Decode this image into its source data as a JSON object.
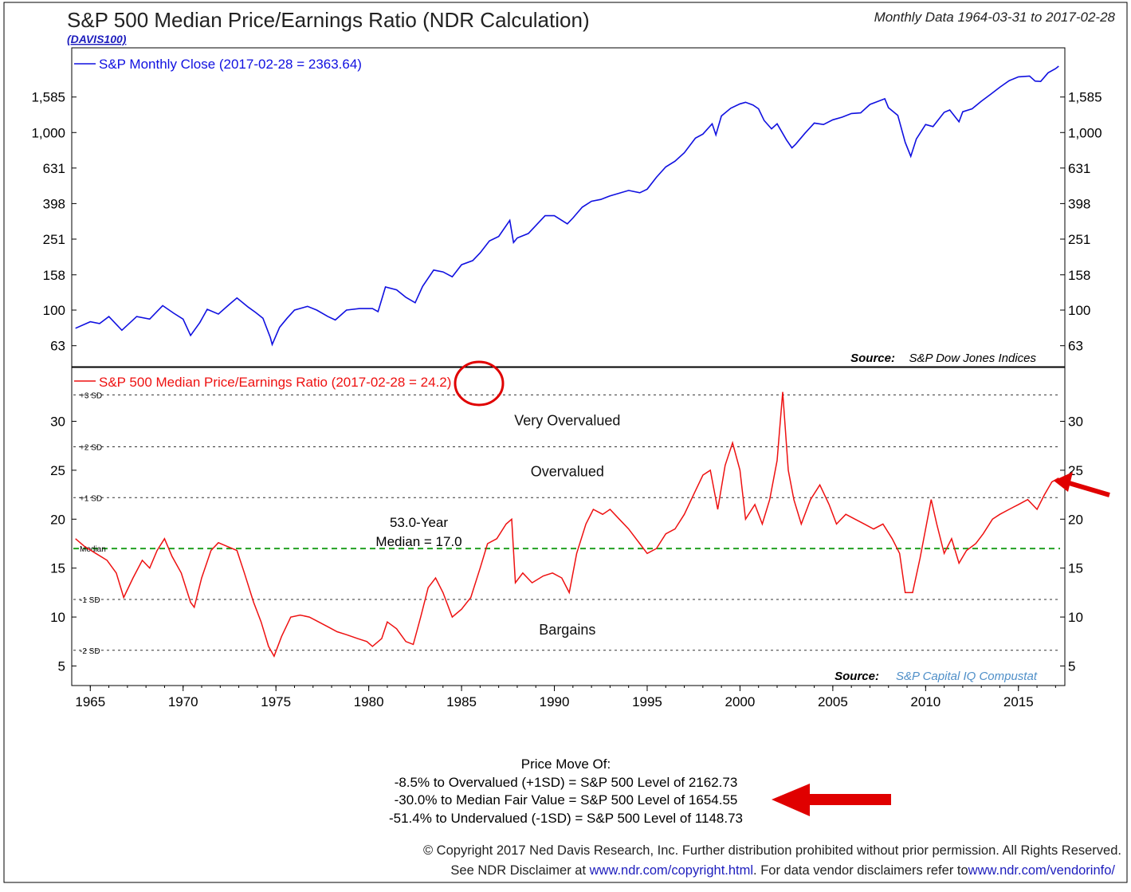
{
  "header": {
    "title": "S&P 500 Median Price/Earnings Ratio (NDR Calculation)",
    "code": "(DAVIS100)",
    "range": "Monthly Data 1964-03-31 to 2017-02-28"
  },
  "colors": {
    "price": "#1010e0",
    "pe": "#ee1111",
    "median": "#22a022",
    "annotation": "#e00000",
    "link": "#1d1dbd",
    "source_link": "#4f8fc8"
  },
  "chart_data": [
    {
      "type": "line",
      "scale": "log",
      "legend": "S&P Monthly Close (2017-02-28 = 2363.64)",
      "source_label": "Source:",
      "source_name": "S&P Dow Jones Indices",
      "ylim": [
        48,
        3000
      ],
      "yticks": [
        63,
        100,
        158,
        251,
        398,
        631,
        1000,
        1585
      ],
      "ytick_labels": [
        "63",
        "100",
        "158",
        "251",
        "398",
        "631",
        "1,000",
        "1,585"
      ],
      "xlim": [
        1964.0,
        2017.5
      ],
      "series": [
        {
          "values": [
            [
              1964.2,
              79
            ],
            [
              1965.0,
              86
            ],
            [
              1965.5,
              84
            ],
            [
              1966.0,
              92
            ],
            [
              1966.7,
              77
            ],
            [
              1967.5,
              92
            ],
            [
              1968.2,
              89
            ],
            [
              1968.9,
              106
            ],
            [
              1969.5,
              96
            ],
            [
              1970.0,
              89
            ],
            [
              1970.4,
              72
            ],
            [
              1970.9,
              85
            ],
            [
              1971.3,
              101
            ],
            [
              1971.9,
              95
            ],
            [
              1972.5,
              108
            ],
            [
              1972.9,
              117
            ],
            [
              1973.5,
              104
            ],
            [
              1973.9,
              97
            ],
            [
              1974.3,
              90
            ],
            [
              1974.7,
              70
            ],
            [
              1974.8,
              64
            ],
            [
              1975.2,
              80
            ],
            [
              1975.6,
              90
            ],
            [
              1976.0,
              100
            ],
            [
              1976.7,
              105
            ],
            [
              1977.2,
              100
            ],
            [
              1977.8,
              92
            ],
            [
              1978.2,
              88
            ],
            [
              1978.8,
              100
            ],
            [
              1979.5,
              102
            ],
            [
              1980.2,
              102
            ],
            [
              1980.5,
              98
            ],
            [
              1980.9,
              135
            ],
            [
              1981.5,
              130
            ],
            [
              1982.0,
              118
            ],
            [
              1982.5,
              110
            ],
            [
              1982.9,
              136
            ],
            [
              1983.5,
              168
            ],
            [
              1984.0,
              164
            ],
            [
              1984.5,
              154
            ],
            [
              1985.0,
              180
            ],
            [
              1985.6,
              190
            ],
            [
              1986.0,
              210
            ],
            [
              1986.5,
              245
            ],
            [
              1987.0,
              260
            ],
            [
              1987.6,
              320
            ],
            [
              1987.8,
              240
            ],
            [
              1988.0,
              255
            ],
            [
              1988.6,
              270
            ],
            [
              1989.5,
              340
            ],
            [
              1990.0,
              340
            ],
            [
              1990.7,
              306
            ],
            [
              1991.0,
              330
            ],
            [
              1991.5,
              380
            ],
            [
              1992.0,
              410
            ],
            [
              1992.5,
              420
            ],
            [
              1993.0,
              440
            ],
            [
              1994.0,
              472
            ],
            [
              1994.6,
              458
            ],
            [
              1995.0,
              480
            ],
            [
              1995.5,
              560
            ],
            [
              1996.0,
              640
            ],
            [
              1996.5,
              690
            ],
            [
              1997.0,
              770
            ],
            [
              1997.6,
              930
            ],
            [
              1998.0,
              980
            ],
            [
              1998.5,
              1120
            ],
            [
              1998.7,
              970
            ],
            [
              1999.0,
              1240
            ],
            [
              1999.5,
              1370
            ],
            [
              2000.0,
              1450
            ],
            [
              2000.3,
              1480
            ],
            [
              2000.7,
              1430
            ],
            [
              2001.0,
              1360
            ],
            [
              2001.3,
              1170
            ],
            [
              2001.7,
              1050
            ],
            [
              2002.0,
              1120
            ],
            [
              2002.5,
              910
            ],
            [
              2002.8,
              820
            ],
            [
              2003.0,
              860
            ],
            [
              2003.5,
              990
            ],
            [
              2004.0,
              1130
            ],
            [
              2004.5,
              1110
            ],
            [
              2005.0,
              1180
            ],
            [
              2005.5,
              1220
            ],
            [
              2006.0,
              1280
            ],
            [
              2006.5,
              1290
            ],
            [
              2007.0,
              1440
            ],
            [
              2007.8,
              1550
            ],
            [
              2008.0,
              1380
            ],
            [
              2008.5,
              1250
            ],
            [
              2008.9,
              880
            ],
            [
              2009.2,
              735
            ],
            [
              2009.5,
              920
            ],
            [
              2010.0,
              1110
            ],
            [
              2010.4,
              1080
            ],
            [
              2011.0,
              1300
            ],
            [
              2011.3,
              1340
            ],
            [
              2011.8,
              1150
            ],
            [
              2012.0,
              1310
            ],
            [
              2012.5,
              1360
            ],
            [
              2013.0,
              1500
            ],
            [
              2013.5,
              1640
            ],
            [
              2014.0,
              1800
            ],
            [
              2014.5,
              1960
            ],
            [
              2015.0,
              2060
            ],
            [
              2015.6,
              2080
            ],
            [
              2015.9,
              1950
            ],
            [
              2016.2,
              1940
            ],
            [
              2016.6,
              2170
            ],
            [
              2017.0,
              2290
            ],
            [
              2017.17,
              2364
            ]
          ]
        }
      ]
    },
    {
      "type": "line",
      "legend": "S&P 500 Median Price/Earnings Ratio (2017-02-28 = 24.2)",
      "source_label": "Source:",
      "source_name": "S&P Capital IQ Compustat",
      "ylim": [
        3,
        35.5
      ],
      "yticks": [
        5,
        10,
        15,
        20,
        25,
        30
      ],
      "ytick_labels": [
        "5",
        "10",
        "15",
        "20",
        "25",
        "30"
      ],
      "reference_lines": [
        {
          "label": "+3 SD",
          "value": 32.7
        },
        {
          "label": "+2 SD",
          "value": 27.4
        },
        {
          "label": "+1 SD",
          "value": 22.2
        },
        {
          "label": "Median",
          "value": 17.0
        },
        {
          "label": "-1 SD",
          "value": 11.8
        },
        {
          "label": "-2 SD",
          "value": 6.6
        }
      ],
      "zone_labels": [
        {
          "text": "Very Overvalued",
          "x": 1990.7,
          "y": 29.6
        },
        {
          "text": "Overvalued",
          "x": 1990.7,
          "y": 24.4
        },
        {
          "text": "Bargains",
          "x": 1990.7,
          "y": 8.2
        }
      ],
      "median_note": [
        "53.0-Year",
        "Median = 17.0"
      ],
      "median_note_pos": {
        "x": 1982.7,
        "y": 19.2
      },
      "x_ticks": [
        1965,
        1970,
        1975,
        1980,
        1985,
        1990,
        1995,
        2000,
        2005,
        2010,
        2015
      ],
      "xlim": [
        1964.0,
        2017.5
      ],
      "series": [
        {
          "values": [
            [
              1964.2,
              18.0
            ],
            [
              1964.7,
              17.2
            ],
            [
              1965.3,
              16.5
            ],
            [
              1965.9,
              15.8
            ],
            [
              1966.4,
              14.5
            ],
            [
              1966.8,
              12.0
            ],
            [
              1967.3,
              14.0
            ],
            [
              1967.8,
              15.8
            ],
            [
              1968.2,
              15.0
            ],
            [
              1968.6,
              16.8
            ],
            [
              1969.0,
              18.0
            ],
            [
              1969.4,
              16.2
            ],
            [
              1969.9,
              14.5
            ],
            [
              1970.4,
              11.5
            ],
            [
              1970.6,
              11.0
            ],
            [
              1971.0,
              14.0
            ],
            [
              1971.5,
              16.8
            ],
            [
              1971.9,
              17.6
            ],
            [
              1972.4,
              17.2
            ],
            [
              1972.9,
              16.8
            ],
            [
              1973.3,
              14.5
            ],
            [
              1973.8,
              11.5
            ],
            [
              1974.2,
              9.5
            ],
            [
              1974.6,
              7.0
            ],
            [
              1974.9,
              6.0
            ],
            [
              1975.3,
              8.0
            ],
            [
              1975.8,
              10.0
            ],
            [
              1976.3,
              10.2
            ],
            [
              1976.8,
              10.0
            ],
            [
              1977.3,
              9.5
            ],
            [
              1977.8,
              9.0
            ],
            [
              1978.3,
              8.5
            ],
            [
              1978.8,
              8.2
            ],
            [
              1979.4,
              7.8
            ],
            [
              1979.9,
              7.5
            ],
            [
              1980.2,
              7.0
            ],
            [
              1980.7,
              7.8
            ],
            [
              1981.0,
              9.5
            ],
            [
              1981.5,
              8.8
            ],
            [
              1982.0,
              7.5
            ],
            [
              1982.4,
              7.2
            ],
            [
              1982.8,
              10.0
            ],
            [
              1983.2,
              13.0
            ],
            [
              1983.6,
              14.0
            ],
            [
              1984.0,
              12.5
            ],
            [
              1984.5,
              10.0
            ],
            [
              1985.0,
              10.8
            ],
            [
              1985.5,
              12.0
            ],
            [
              1986.0,
              15.0
            ],
            [
              1986.4,
              17.5
            ],
            [
              1986.9,
              18.0
            ],
            [
              1987.4,
              19.5
            ],
            [
              1987.7,
              20.0
            ],
            [
              1987.9,
              13.5
            ],
            [
              1988.3,
              14.5
            ],
            [
              1988.8,
              13.5
            ],
            [
              1989.4,
              14.2
            ],
            [
              1989.9,
              14.5
            ],
            [
              1990.4,
              14.0
            ],
            [
              1990.8,
              12.5
            ],
            [
              1991.2,
              16.5
            ],
            [
              1991.7,
              19.5
            ],
            [
              1992.1,
              21.0
            ],
            [
              1992.6,
              20.5
            ],
            [
              1993.0,
              21.0
            ],
            [
              1993.5,
              20.0
            ],
            [
              1994.0,
              19.0
            ],
            [
              1994.6,
              17.5
            ],
            [
              1995.0,
              16.5
            ],
            [
              1995.5,
              17.0
            ],
            [
              1996.0,
              18.5
            ],
            [
              1996.5,
              19.0
            ],
            [
              1997.0,
              20.5
            ],
            [
              1997.5,
              22.5
            ],
            [
              1998.0,
              24.5
            ],
            [
              1998.4,
              25.0
            ],
            [
              1998.8,
              21.0
            ],
            [
              1999.2,
              25.5
            ],
            [
              1999.6,
              27.8
            ],
            [
              2000.0,
              25.0
            ],
            [
              2000.3,
              20.0
            ],
            [
              2000.8,
              21.5
            ],
            [
              2001.2,
              19.5
            ],
            [
              2001.6,
              22.0
            ],
            [
              2002.0,
              26.0
            ],
            [
              2002.3,
              33.0
            ],
            [
              2002.6,
              25.0
            ],
            [
              2002.9,
              22.0
            ],
            [
              2003.3,
              19.5
            ],
            [
              2003.8,
              22.0
            ],
            [
              2004.3,
              23.5
            ],
            [
              2004.8,
              21.5
            ],
            [
              2005.2,
              19.5
            ],
            [
              2005.7,
              20.5
            ],
            [
              2006.2,
              20.0
            ],
            [
              2006.7,
              19.5
            ],
            [
              2007.2,
              19.0
            ],
            [
              2007.7,
              19.5
            ],
            [
              2008.2,
              18.0
            ],
            [
              2008.6,
              16.5
            ],
            [
              2008.9,
              12.5
            ],
            [
              2009.3,
              12.5
            ],
            [
              2009.7,
              16.0
            ],
            [
              2010.0,
              19.0
            ],
            [
              2010.3,
              22.0
            ],
            [
              2010.6,
              19.5
            ],
            [
              2011.0,
              16.5
            ],
            [
              2011.4,
              18.0
            ],
            [
              2011.8,
              15.5
            ],
            [
              2012.2,
              16.8
            ],
            [
              2012.7,
              17.5
            ],
            [
              2013.1,
              18.5
            ],
            [
              2013.6,
              20.0
            ],
            [
              2014.0,
              20.5
            ],
            [
              2014.5,
              21.0
            ],
            [
              2015.0,
              21.5
            ],
            [
              2015.5,
              22.0
            ],
            [
              2016.0,
              21.0
            ],
            [
              2016.4,
              22.5
            ],
            [
              2016.8,
              23.8
            ],
            [
              2017.17,
              24.2
            ]
          ]
        }
      ]
    }
  ],
  "price_move": {
    "title": "Price Move Of:",
    "lines": [
      "-8.5% to Overvalued (+1SD) = S&P 500 Level of 2162.73",
      "-30.0% to Median Fair Value = S&P 500 Level of 1654.55",
      "-51.4% to Undervalued (-1SD) = S&P 500 Level of 1148.73"
    ]
  },
  "footer": {
    "copyright": "© Copyright 2017 Ned Davis Research, Inc. Further distribution prohibited without prior permission. All Rights Reserved.",
    "disclaimer_prefix": "See NDR Disclaimer at ",
    "disclaimer_link": "www.ndr.com/copyright.html",
    "disclaimer_mid": ". For data vendor disclaimers refer to",
    "vendor_link": "www.ndr.com/vendorinfo/"
  }
}
